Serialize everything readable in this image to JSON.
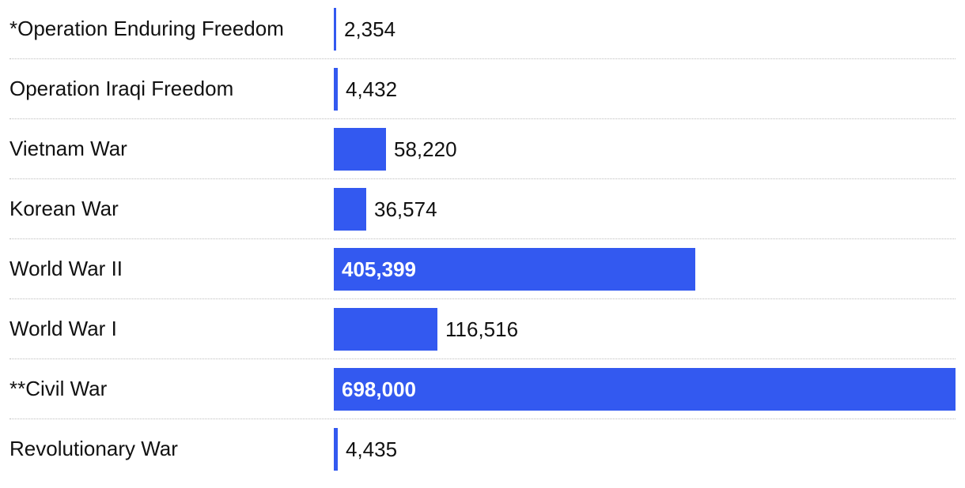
{
  "chart_data": {
    "type": "bar",
    "orientation": "horizontal",
    "categories": [
      "*Operation Enduring Freedom",
      "Operation Iraqi Freedom",
      "Vietnam War",
      "Korean War",
      "World War II",
      "World War I",
      "**Civil War",
      "Revolutionary War"
    ],
    "values": [
      2354,
      4432,
      58220,
      36574,
      405399,
      116516,
      698000,
      4435
    ],
    "value_labels": [
      "2,354",
      "4,432",
      "58,220",
      "36,574",
      "405,399",
      "116,516",
      "698,000",
      "4,435"
    ],
    "title": "",
    "xlabel": "",
    "ylabel": "",
    "xlim": [
      0,
      698000
    ],
    "grid": false,
    "legend": "none",
    "bar_color": "#3359f0",
    "label_color": "#111111",
    "inside_label_color": "#ffffff",
    "divider_color": "#bdbdbd"
  }
}
